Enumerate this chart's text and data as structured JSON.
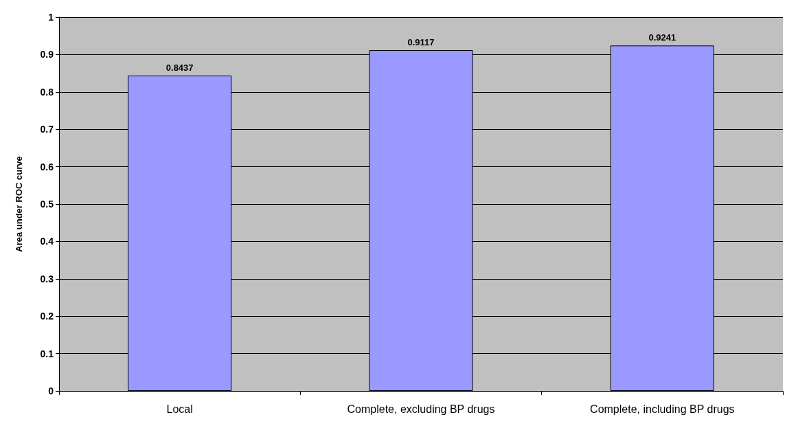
{
  "chart_data": {
    "type": "bar",
    "ylabel": "Area under ROC curve",
    "categories": [
      "Local",
      "Complete, excluding BP drugs",
      "Complete, including BP drugs"
    ],
    "values": [
      0.8437,
      0.9117,
      0.9241
    ],
    "color": "#9999ff",
    "ylim": [
      0,
      1
    ],
    "yticks": [
      0,
      0.1,
      0.2,
      0.3,
      0.4,
      0.5,
      0.6,
      0.7,
      0.8,
      0.9,
      1
    ],
    "grid": "y",
    "data_labels": true
  }
}
